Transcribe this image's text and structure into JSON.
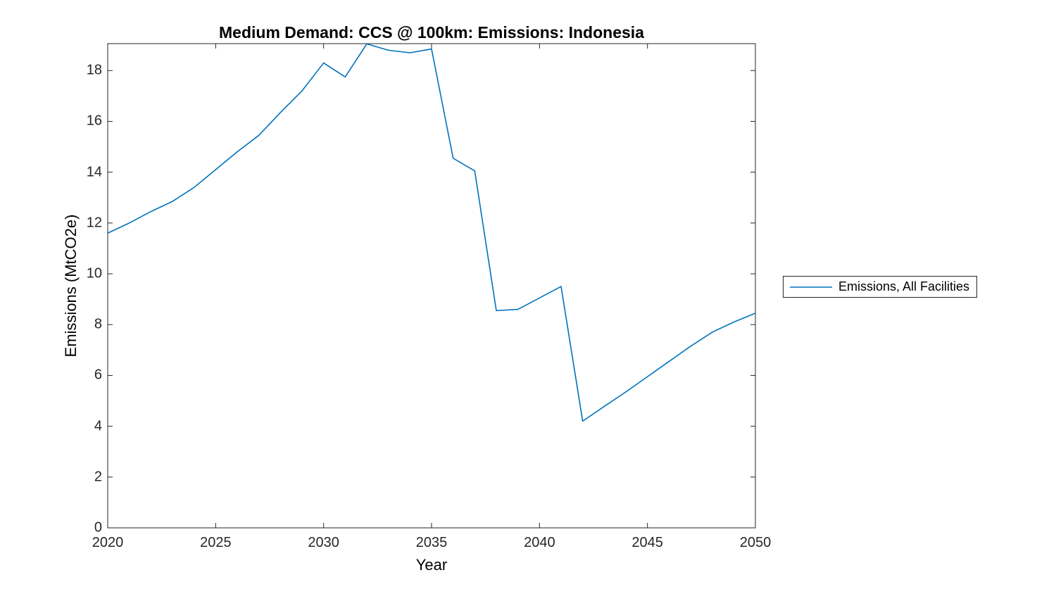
{
  "figure": {
    "title": "Medium Demand: CCS @ 100km: Emissions: Indonesia",
    "xlabel": "Year",
    "ylabel": "Emissions (MtCO2e)",
    "legend": {
      "position": "outside-right",
      "entries": [
        {
          "label": "Emissions, All Facilities",
          "color": "#0072BD"
        }
      ]
    }
  },
  "colors": {
    "line": "#0072BD",
    "axis": "#262626",
    "background": "#ffffff"
  },
  "chart_data": {
    "type": "line",
    "title": "Medium Demand: CCS @ 100km: Emissions: Indonesia",
    "xlabel": "Year",
    "ylabel": "Emissions (MtCO2e)",
    "grid": false,
    "legend_position": "outside-right",
    "xlim": [
      2020,
      2050
    ],
    "ylim": [
      0,
      19.06
    ],
    "xticks": [
      2020,
      2025,
      2030,
      2035,
      2040,
      2045,
      2050
    ],
    "yticks": [
      0,
      2,
      4,
      6,
      8,
      10,
      12,
      14,
      16,
      18
    ],
    "x": [
      2020,
      2021,
      2022,
      2023,
      2024,
      2025,
      2026,
      2027,
      2028,
      2029,
      2030,
      2031,
      2032,
      2033,
      2034,
      2035,
      2036,
      2037,
      2038,
      2039,
      2040,
      2041,
      2042,
      2043,
      2044,
      2045,
      2046,
      2047,
      2048,
      2049,
      2050
    ],
    "series": [
      {
        "name": "Emissions, All Facilities",
        "color": "#0072BD",
        "values": [
          11.6,
          12.0,
          12.45,
          12.85,
          13.4,
          14.1,
          14.8,
          15.45,
          16.35,
          17.2,
          18.3,
          17.75,
          19.05,
          18.8,
          18.7,
          18.85,
          14.55,
          14.05,
          8.55,
          8.6,
          9.05,
          9.5,
          4.2,
          4.78,
          5.35,
          5.95,
          6.55,
          7.15,
          7.7,
          8.1,
          8.45
        ]
      }
    ]
  }
}
